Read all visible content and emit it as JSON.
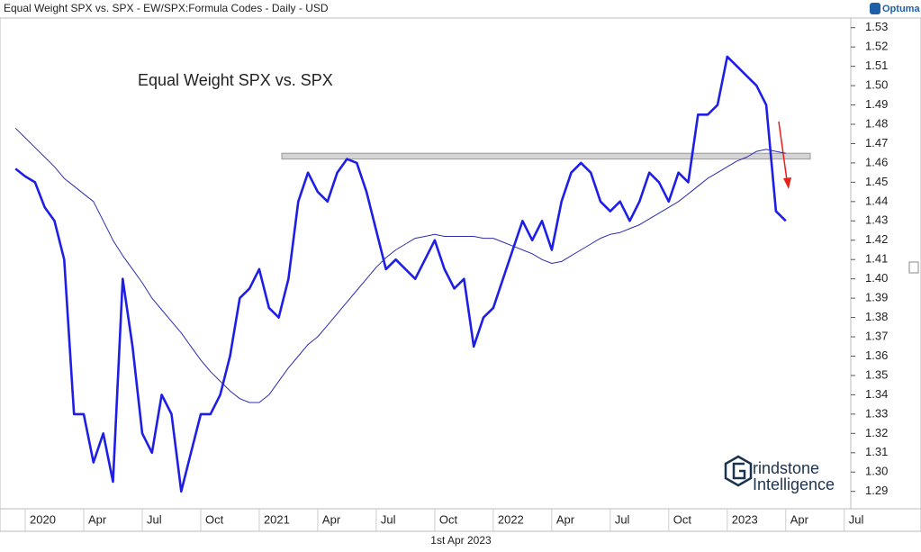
{
  "header": {
    "title": "Equal Weight SPX vs. SPX - EW/SPX:Formula Codes - Daily - USD",
    "brand": "Optuma"
  },
  "chart_data": {
    "type": "line",
    "title": "Equal Weight SPX vs. SPX",
    "categories": [
      null,
      "2020",
      null,
      null,
      null,
      null,
      null,
      "Apr",
      null,
      null,
      null,
      null,
      null,
      "Jul",
      null,
      null,
      null,
      null,
      null,
      "Oct",
      null,
      null,
      null,
      null,
      null,
      "2021",
      null,
      null,
      null,
      null,
      null,
      "Apr",
      null,
      null,
      null,
      null,
      null,
      "Jul",
      null,
      null,
      null,
      null,
      null,
      "Oct",
      null,
      null,
      null,
      null,
      null,
      "2022",
      null,
      null,
      null,
      null,
      null,
      "Apr",
      null,
      null,
      null,
      null,
      null,
      "Jul",
      null,
      null,
      null,
      null,
      null,
      "Oct",
      null,
      null,
      null,
      null,
      null,
      "2023",
      null,
      null,
      null,
      null,
      null,
      "Apr",
      null,
      null,
      null,
      null,
      null,
      "Jul"
    ],
    "series": [
      {
        "color": "#1e1ee6",
        "values": [
          1.457,
          1.453,
          1.45,
          1.437,
          1.43,
          1.41,
          1.33,
          1.33,
          1.305,
          1.32,
          1.295,
          1.4,
          1.365,
          1.32,
          1.31,
          1.34,
          1.33,
          1.29,
          1.31,
          1.33,
          1.33,
          1.34,
          1.36,
          1.39,
          1.395,
          1.405,
          1.385,
          1.38,
          1.4,
          1.44,
          1.455,
          1.445,
          1.44,
          1.455,
          1.462,
          1.46,
          1.445,
          1.425,
          1.405,
          1.41,
          1.405,
          1.4,
          1.41,
          1.42,
          1.405,
          1.395,
          1.4,
          1.365,
          1.38,
          1.385,
          1.4,
          1.415,
          1.43,
          1.42,
          1.43,
          1.415,
          1.44,
          1.455,
          1.46,
          1.455,
          1.44,
          1.435,
          1.44,
          1.43,
          1.44,
          1.455,
          1.45,
          1.44,
          1.455,
          1.45,
          1.485,
          1.485,
          1.49,
          1.515,
          1.51,
          1.505,
          1.5,
          1.49,
          1.435,
          1.43,
          null,
          null,
          null,
          null,
          null,
          null
        ]
      },
      {
        "color": "#2c2cb0",
        "values": [
          1.478,
          1.473,
          1.468,
          1.463,
          1.458,
          1.452,
          1.448,
          1.444,
          1.44,
          1.43,
          1.42,
          1.412,
          1.405,
          1.398,
          1.39,
          1.384,
          1.378,
          1.372,
          1.365,
          1.358,
          1.352,
          1.347,
          1.342,
          1.338,
          1.336,
          1.336,
          1.34,
          1.347,
          1.354,
          1.36,
          1.366,
          1.37,
          1.376,
          1.382,
          1.388,
          1.394,
          1.4,
          1.406,
          1.411,
          1.415,
          1.418,
          1.421,
          1.422,
          1.423,
          1.422,
          1.422,
          1.422,
          1.422,
          1.421,
          1.421,
          1.419,
          1.417,
          1.415,
          1.413,
          1.41,
          1.408,
          1.409,
          1.412,
          1.415,
          1.418,
          1.421,
          1.423,
          1.424,
          1.426,
          1.428,
          1.431,
          1.434,
          1.437,
          1.44,
          1.444,
          1.448,
          1.452,
          1.455,
          1.458,
          1.461,
          1.463,
          1.466,
          1.467,
          1.466,
          1.465,
          null,
          null,
          null,
          null,
          null,
          null
        ]
      }
    ],
    "resistance_band": [
      1.462,
      1.465
    ],
    "ylim": [
      1.281,
      1.535
    ],
    "yticks": [
      1.29,
      {
        "value": 1.3,
        "label": "1.30"
      },
      1.31,
      1.32,
      1.33,
      1.34,
      1.35,
      1.36,
      1.37,
      1.38,
      1.39,
      {
        "value": 1.4,
        "label": "1.40"
      },
      1.41,
      1.42,
      1.43,
      1.44,
      1.45,
      1.46,
      1.47,
      1.48,
      1.49,
      {
        "value": 1.5,
        "label": "1.50"
      },
      1.51,
      1.52,
      1.53
    ]
  },
  "watermark": {
    "line1": "rindstone",
    "line2": "Intelligence"
  },
  "footer": {
    "date": "1st Apr 2023"
  }
}
